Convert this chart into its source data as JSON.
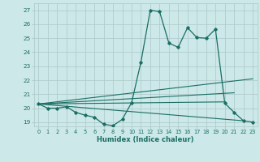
{
  "xlabel": "Humidex (Indice chaleur)",
  "bg_color": "#cce8e8",
  "grid_color": "#b0cccc",
  "line_color": "#1a6e64",
  "xlim": [
    -0.5,
    23.5
  ],
  "ylim": [
    18.7,
    27.5
  ],
  "yticks": [
    19,
    20,
    21,
    22,
    23,
    24,
    25,
    26,
    27
  ],
  "xticks": [
    0,
    1,
    2,
    3,
    4,
    5,
    6,
    7,
    8,
    9,
    10,
    11,
    12,
    13,
    14,
    15,
    16,
    17,
    18,
    19,
    20,
    21,
    22,
    23
  ],
  "main_x": [
    0,
    1,
    2,
    3,
    4,
    5,
    6,
    7,
    8,
    9,
    10,
    11,
    12,
    13,
    14,
    15,
    16,
    17,
    18,
    19,
    20,
    21,
    22,
    23
  ],
  "main_y": [
    20.3,
    20.0,
    20.0,
    20.1,
    19.7,
    19.5,
    19.35,
    18.85,
    18.75,
    19.2,
    20.4,
    23.3,
    27.0,
    26.9,
    24.65,
    24.35,
    25.75,
    25.05,
    25.0,
    25.65,
    20.35,
    19.7,
    19.1,
    19.0
  ],
  "line2_x": [
    0,
    23
  ],
  "line2_y": [
    20.3,
    22.1
  ],
  "line3_x": [
    0,
    21
  ],
  "line3_y": [
    20.3,
    21.1
  ],
  "line4_x": [
    0,
    20
  ],
  "line4_y": [
    20.3,
    20.45
  ],
  "line5_x": [
    0,
    22
  ],
  "line5_y": [
    20.3,
    19.1
  ]
}
